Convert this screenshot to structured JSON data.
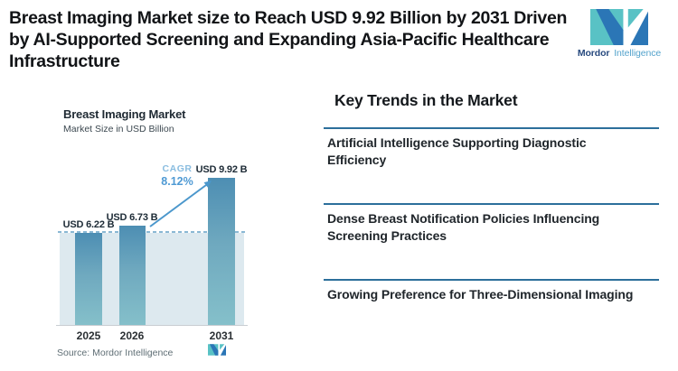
{
  "header": {
    "lines": [
      "Breast Imaging Market size to Reach USD 9.92 Billion by 2031 Driven",
      "by AI-Supported Screening and Expanding Asia-Pacific Healthcare",
      "Infrastructure"
    ]
  },
  "brand": {
    "name_bold": "Mordor",
    "name_light": "Intelligence",
    "teal": "#59c2c5",
    "blue": "#2b76b6"
  },
  "chart_data": {
    "type": "bar",
    "title": "Breast Imaging Market",
    "subtitle": "Market Size in USD Billion",
    "categories": [
      "2025",
      "2026",
      "2031"
    ],
    "values": [
      6.22,
      6.73,
      9.92
    ],
    "value_labels": [
      "USD 6.22 B",
      "USD 6.73 B",
      "USD 9.92 B"
    ],
    "cagr_label": "CAGR",
    "cagr_value": "8.12%",
    "reference_line_value": 6.22,
    "source": "Source: Mordor Intelligence",
    "ylabel": "USD Billion",
    "ylim": [
      0,
      10.5
    ],
    "grid": false,
    "legend": "none",
    "colors": {
      "bar_top": "#4d8eb3",
      "bar_bottom": "#85c0ca",
      "band_fill": "#dde9ef",
      "dashed_line": "#8ab8d4",
      "cagr_text": "#4f9ad4",
      "arrow": "#4b97cc"
    }
  },
  "trends": {
    "heading": "Key Trends in the Market",
    "divider_color": "#2c6f9b",
    "items": [
      {
        "lines": [
          "Artificial Intelligence Supporting Diagnostic",
          "Efficiency"
        ]
      },
      {
        "lines": [
          "Dense Breast Notification Policies Influencing",
          "Screening Practices"
        ]
      },
      {
        "lines": [
          "Growing Preference for Three-Dimensional Imaging"
        ]
      }
    ]
  }
}
